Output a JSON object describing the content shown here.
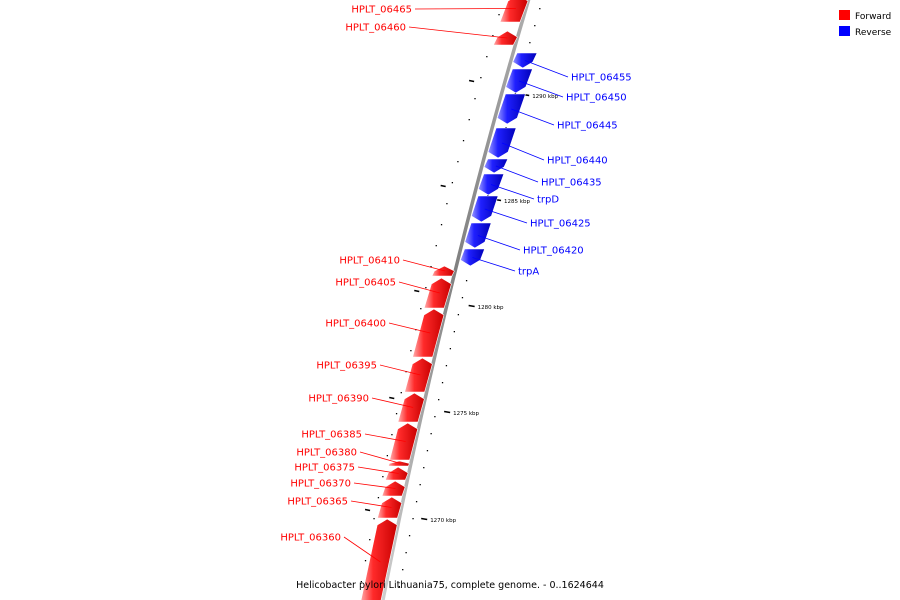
{
  "caption": "Helicobacter pylori Lithuania75, complete genome. - 0..1624644",
  "colors": {
    "forward": "#ff0000",
    "reverse": "#0000ff",
    "backbone": "#888888"
  },
  "legend": [
    {
      "label": "Forward",
      "color": "#ff0000"
    },
    {
      "label": "Reverse",
      "color": "#0000ff"
    }
  ],
  "ticks": [
    {
      "label": "1290 kbp"
    },
    {
      "label": "1285 kbp"
    },
    {
      "label": "1280 kbp"
    },
    {
      "label": "1275 kbp"
    },
    {
      "label": "1270 kbp"
    }
  ],
  "genes": [
    {
      "name": "HPLT_06465",
      "strand": "forward"
    },
    {
      "name": "HPLT_06460",
      "strand": "forward"
    },
    {
      "name": "HPLT_06455",
      "strand": "reverse"
    },
    {
      "name": "HPLT_06450",
      "strand": "reverse"
    },
    {
      "name": "HPLT_06445",
      "strand": "reverse"
    },
    {
      "name": "HPLT_06440",
      "strand": "reverse"
    },
    {
      "name": "HPLT_06435",
      "strand": "reverse"
    },
    {
      "name": "trpD",
      "strand": "reverse"
    },
    {
      "name": "HPLT_06425",
      "strand": "reverse"
    },
    {
      "name": "HPLT_06420",
      "strand": "reverse"
    },
    {
      "name": "trpA",
      "strand": "reverse"
    },
    {
      "name": "HPLT_06410",
      "strand": "forward"
    },
    {
      "name": "HPLT_06405",
      "strand": "forward"
    },
    {
      "name": "HPLT_06400",
      "strand": "forward"
    },
    {
      "name": "HPLT_06395",
      "strand": "forward"
    },
    {
      "name": "HPLT_06390",
      "strand": "forward"
    },
    {
      "name": "HPLT_06385",
      "strand": "forward"
    },
    {
      "name": "HPLT_06380",
      "strand": "forward"
    },
    {
      "name": "HPLT_06375",
      "strand": "forward"
    },
    {
      "name": "HPLT_06370",
      "strand": "forward"
    },
    {
      "name": "HPLT_06365",
      "strand": "forward"
    },
    {
      "name": "HPLT_06360",
      "strand": "forward"
    }
  ]
}
